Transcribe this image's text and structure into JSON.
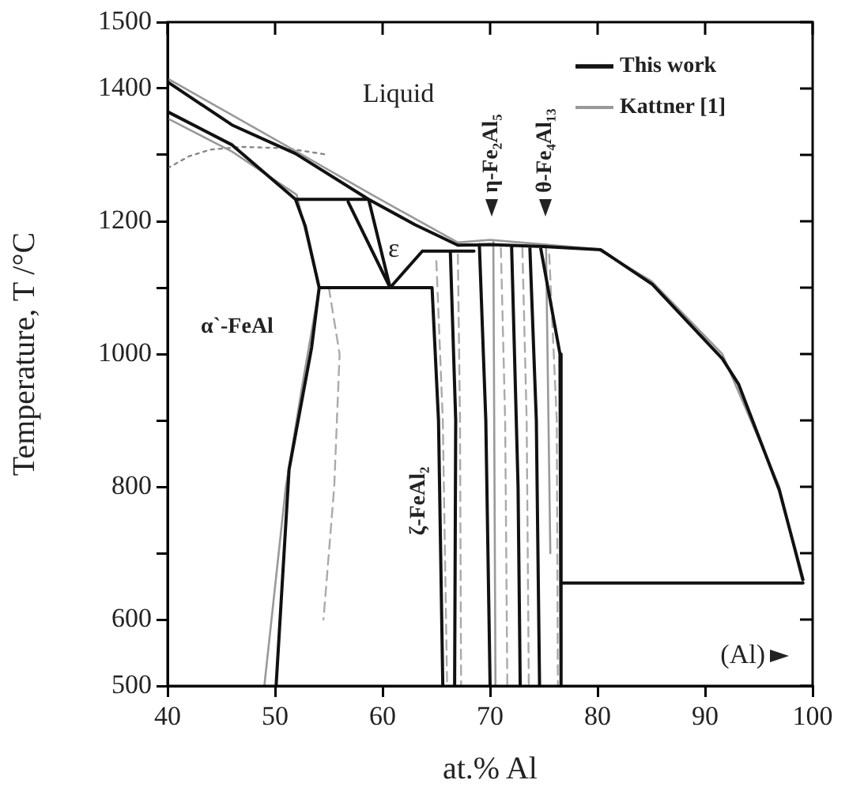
{
  "chart_data": {
    "type": "line",
    "xlabel": "at.% Al",
    "ylabel": "Temperature, T /°C",
    "xlim": [
      40,
      100
    ],
    "xticks": [
      40,
      50,
      60,
      70,
      80,
      90,
      100
    ],
    "ylim": [
      500,
      1500
    ],
    "yticks": [
      500,
      600,
      {
        "value": 700,
        "label": null
      },
      800,
      {
        "value": 900,
        "label": null
      },
      1000,
      {
        "value": 1100,
        "label": null
      },
      1200,
      {
        "value": 1300,
        "label": null
      },
      1400,
      1500
    ],
    "legend": "top right",
    "grid": false,
    "marker": "none",
    "series": [
      {
        "name": "This work",
        "color": "#111111",
        "line_style": "solid",
        "x": [
          40,
          46,
          51.9,
          58.7,
          63,
          67,
          70,
          75,
          80.3,
          85.1,
          88,
          91.6,
          93.1,
          96.9,
          99.1,
          null,
          40,
          46,
          51.9,
          null,
          51.9,
          58.7,
          null,
          51.9,
          52.8,
          54.1,
          53.4,
          51.3,
          50.1,
          null,
          54.1,
          64.6,
          null,
          56.8,
          60.7,
          63.7,
          null,
          58.7,
          60.7,
          null,
          63.7,
          68.5,
          null,
          64.6,
          65.2,
          65.6,
          null,
          66.3,
          66.8,
          66.7,
          null,
          69,
          69.6,
          70,
          null,
          72,
          72.6,
          72.8,
          null,
          73.7,
          74.3,
          74.6,
          null,
          74.7,
          76.5,
          76.6,
          null,
          76.6,
          99.1
        ],
        "values": [
          1410,
          1345,
          1302,
          1233,
          1195,
          1164,
          1165,
          1162,
          1157,
          1105,
          1055,
          993,
          955,
          795,
          660,
          null,
          1365,
          1315,
          1233,
          null,
          1233,
          1233,
          null,
          1233,
          1193,
          1100,
          1010,
          826,
          502,
          null,
          1100,
          1100,
          null,
          1229,
          1100,
          1155,
          null,
          1233,
          1100,
          null,
          1155,
          1155,
          null,
          1100,
          900,
          500,
          null,
          1155,
          900,
          500,
          null,
          1165,
          900,
          500,
          null,
          1162,
          800,
          500,
          null,
          1160,
          900,
          500,
          null,
          1160,
          1000,
          500,
          null,
          655,
          655
        ]
      },
      {
        "name": "Kattner [1]",
        "color": "#999999",
        "line_style": "solid",
        "x": [
          40,
          46,
          52,
          59,
          67,
          70,
          75,
          80,
          85,
          91.6,
          96.9,
          99,
          null,
          40,
          46,
          52,
          null,
          52,
          54.1,
          52.5,
          51,
          49,
          null,
          70.3,
          70.5,
          null,
          75.2,
          75.6
        ],
        "values": [
          1415,
          1360,
          1305,
          1240,
          1168,
          1172,
          1165,
          1158,
          1110,
          1000,
          800,
          660,
          null,
          1355,
          1305,
          1240,
          null,
          1240,
          1100,
          950,
          800,
          500,
          null,
          1170,
          500,
          null,
          1165,
          700
        ]
      },
      {
        "color": "#aaaaaa",
        "line_style": "dashed",
        "x": [
          55,
          56,
          55.5,
          54.5,
          null,
          65,
          65.6,
          66,
          null,
          67,
          67.2,
          67.3,
          null,
          71,
          71.4,
          71.6,
          null,
          73,
          73.4,
          73.6,
          null,
          75.5,
          76.2,
          76.3
        ],
        "values": [
          1100,
          1000,
          800,
          600,
          null,
          1140,
          900,
          500,
          null,
          1150,
          900,
          500,
          null,
          1160,
          900,
          500,
          null,
          1160,
          900,
          500,
          null,
          1150,
          900,
          500
        ]
      },
      {
        "color": "#888888",
        "line_style": "dotted",
        "x": [
          40,
          42,
          44,
          47,
          51,
          55
        ],
        "values": [
          1280,
          1298,
          1308,
          1312,
          1310,
          1300
        ]
      }
    ],
    "annotations": [
      "Liquid",
      "ε",
      "α`-FeAl",
      "ζ-FeAl₂",
      "η-Fe₂Al₅",
      "θ-Fe₄Al₁₃",
      "(Al)"
    ]
  }
}
